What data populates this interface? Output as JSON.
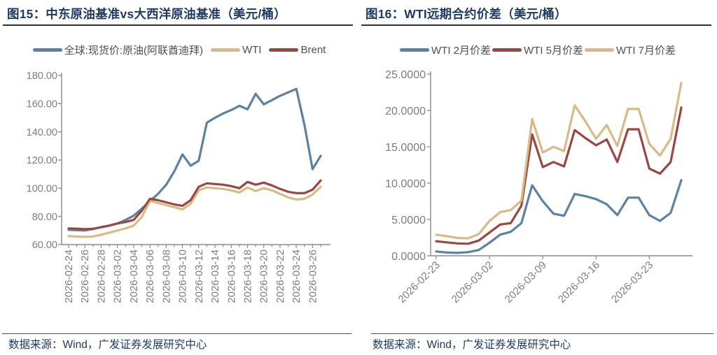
{
  "panels": [
    {
      "title": "图15：中东原油基准vs大西洋原油基准（美元/桶）",
      "source": "数据来源：Wind，广发证券发展研究中心"
    },
    {
      "title": "图16：WTI远期合约价差（美元/桶）",
      "source": "数据来源：Wind，广发证券发展研究中心"
    }
  ],
  "colors": {
    "blue": "#5d81a1",
    "tan": "#d8bb84",
    "red": "#9c4644",
    "navy_text": "#1f3a63",
    "axis": "#8a8a8a",
    "tick_label": "#7d7d7d"
  },
  "chart_data": [
    {
      "type": "line",
      "title": "图15：中东原油基准vs大西洋原油基准（美元/桶）",
      "xlabel": "",
      "ylabel": "",
      "ylim": [
        60,
        180
      ],
      "grid": false,
      "legend_position": "top",
      "y_tick_values": [
        60,
        80,
        100,
        120,
        140,
        160,
        180
      ],
      "y_tick_labels": [
        "60.00",
        "80.00",
        "100.00",
        "120.00",
        "140.00",
        "160.00",
        "180.00"
      ],
      "x": [
        "2026-02-24",
        "2026-02-25",
        "2026-02-26",
        "2026-02-27",
        "2026-02-28",
        "2026-03-01",
        "2026-03-02",
        "2026-03-03",
        "2026-03-04",
        "2026-03-05",
        "2026-03-06",
        "2026-03-07",
        "2026-03-08",
        "2026-03-09",
        "2026-03-10",
        "2026-03-11",
        "2026-03-12",
        "2026-03-13",
        "2026-03-14",
        "2026-03-15",
        "2026-03-16",
        "2026-03-17",
        "2026-03-18",
        "2026-03-19",
        "2026-03-20",
        "2026-03-21",
        "2026-03-22",
        "2026-03-23",
        "2026-03-24",
        "2026-03-25",
        "2026-03-26",
        "2026-03-27"
      ],
      "x_tick_labels": [
        "2026-02-24",
        "2026-02-26",
        "2026-02-28",
        "2026-03-02",
        "2026-03-04",
        "2026-03-06",
        "2026-03-08",
        "2026-03-10",
        "2026-03-12",
        "2026-03-14",
        "2026-03-16",
        "2026-03-18",
        "2026-03-20",
        "2026-03-22",
        "2026-03-24",
        "2026-03-26"
      ],
      "series": [
        {
          "key": "dubai-spot",
          "name": "全球:现货价:原油(阿联酋迪拜)",
          "color": "#5d81a1",
          "values": [
            70.5,
            70.2,
            70.0,
            71.0,
            72.5,
            73.5,
            75.0,
            77.5,
            80.5,
            85.5,
            91.0,
            96.0,
            102.5,
            112.0,
            124.0,
            116.0,
            119.5,
            146.5,
            150.0,
            153.0,
            155.5,
            158.5,
            156.0,
            167.0,
            159.5,
            162.5,
            165.5,
            168.0,
            170.5,
            145.0,
            113.5,
            123.0
          ]
        },
        {
          "key": "wti",
          "name": "WTI",
          "color": "#d8bb84",
          "values": [
            66.0,
            65.7,
            65.5,
            65.8,
            67.0,
            68.5,
            70.0,
            71.5,
            73.5,
            79.5,
            91.0,
            89.5,
            88.0,
            86.5,
            85.0,
            89.0,
            98.5,
            100.5,
            100.0,
            99.5,
            98.5,
            97.0,
            100.5,
            98.0,
            100.0,
            98.5,
            96.0,
            93.5,
            92.0,
            92.5,
            95.5,
            101.0
          ]
        },
        {
          "key": "brent",
          "name": "Brent",
          "color": "#9c4644",
          "values": [
            71.5,
            71.3,
            71.0,
            71.2,
            72.3,
            73.5,
            75.0,
            76.0,
            77.5,
            84.0,
            92.5,
            91.5,
            90.0,
            88.5,
            87.5,
            91.5,
            101.0,
            103.5,
            103.0,
            102.5,
            101.5,
            100.0,
            104.5,
            102.5,
            104.0,
            102.0,
            99.5,
            97.5,
            96.5,
            96.5,
            99.0,
            105.5
          ]
        }
      ]
    },
    {
      "type": "line",
      "title": "图16：WTI远期合约价差（美元/桶）",
      "xlabel": "",
      "ylabel": "",
      "ylim": [
        0,
        25
      ],
      "grid": false,
      "legend_position": "top",
      "y_tick_values": [
        0,
        5,
        10,
        15,
        20,
        25
      ],
      "y_tick_labels": [
        "0.0000",
        "5.0000",
        "10.0000",
        "15.0000",
        "20.0000",
        "25.0000"
      ],
      "x": [
        "2026-02-23",
        "2026-02-24",
        "2026-02-25",
        "2026-02-26",
        "2026-02-27",
        "2026-03-02",
        "2026-03-03",
        "2026-03-04",
        "2026-03-05",
        "2026-03-06",
        "2026-03-09",
        "2026-03-10",
        "2026-03-11",
        "2026-03-12",
        "2026-03-13",
        "2026-03-16",
        "2026-03-17",
        "2026-03-18",
        "2026-03-19",
        "2026-03-20",
        "2026-03-23",
        "2026-03-24",
        "2026-03-25",
        "2026-03-26"
      ],
      "x_tick_labels": [
        "2026-02-23",
        "2026-03-02",
        "2026-03-09",
        "2026-03-16",
        "2026-03-23"
      ],
      "series": [
        {
          "key": "wti-2m-spread",
          "name": "WTI 2月价差",
          "color": "#5d81a1",
          "values": [
            0.6,
            0.45,
            0.4,
            0.5,
            0.8,
            1.8,
            2.9,
            3.3,
            4.5,
            9.7,
            7.5,
            5.8,
            5.5,
            8.5,
            8.2,
            7.8,
            7.1,
            5.6,
            8.0,
            8.0,
            5.6,
            4.8,
            5.9,
            10.4
          ]
        },
        {
          "key": "wti-5m-spread",
          "name": "WTI 5月价差",
          "color": "#9c4644",
          "values": [
            2.0,
            1.85,
            1.7,
            1.65,
            2.1,
            3.2,
            4.3,
            4.5,
            6.9,
            16.7,
            12.2,
            12.9,
            12.3,
            17.3,
            16.2,
            15.2,
            16.0,
            12.9,
            17.4,
            17.4,
            12.0,
            11.3,
            12.9,
            20.4
          ]
        },
        {
          "key": "wti-7m-spread",
          "name": "WTI 7月价差",
          "color": "#d8bb84",
          "values": [
            2.9,
            2.7,
            2.45,
            2.4,
            3.0,
            4.8,
            6.0,
            6.3,
            7.6,
            18.8,
            14.2,
            15.0,
            14.4,
            20.7,
            18.5,
            16.1,
            18.0,
            15.1,
            20.2,
            20.2,
            15.4,
            13.8,
            16.1,
            23.8
          ]
        }
      ]
    }
  ]
}
